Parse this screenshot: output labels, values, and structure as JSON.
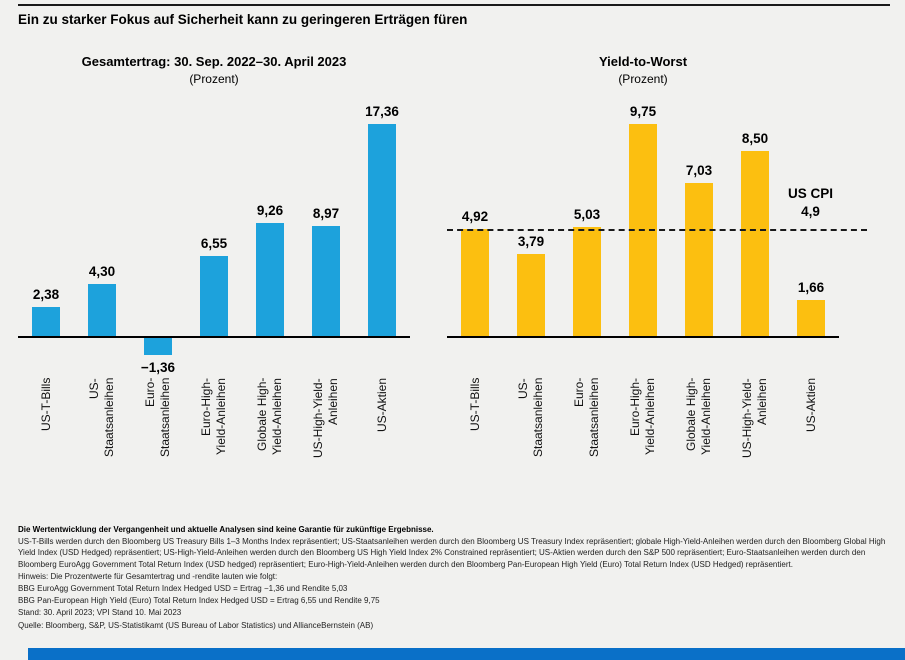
{
  "page": {
    "title": "Ein zu starker Fokus auf Sicherheit kann zu geringeren Erträgen füren"
  },
  "colors": {
    "background": "#f1f1ef",
    "blue_bar": "#1da2dc",
    "yellow_bar": "#fcbf10",
    "footer_accent_bar": "#0a70c8",
    "axis": "#000000"
  },
  "chart_data": [
    {
      "type": "bar",
      "title": "Gesamtertrag: 30. Sep. 2022–30. April 2023",
      "subtitle": "(Prozent)",
      "categories": [
        "US-T-Bills",
        "US-\nStaatsanleihen",
        "Euro-\nStaatsanleihen",
        "Euro-High-\nYield-Anleihen",
        "Globale High-\nYield-Anleihen",
        "US-High-Yield-\nAnleihen",
        "US-Aktien"
      ],
      "values": [
        2.38,
        4.3,
        -1.36,
        6.55,
        9.26,
        8.97,
        17.36
      ],
      "value_labels": [
        "2,38",
        "4,30",
        "−1,36",
        "6,55",
        "9,26",
        "8,97",
        "17,36"
      ],
      "bar_color": "#1da2dc",
      "xlabel": "",
      "ylabel": "",
      "ylim": [
        -2,
        18
      ],
      "grid": false,
      "legend": false,
      "y_axis_ticks_visible": false
    },
    {
      "type": "bar",
      "title": "Yield-to-Worst",
      "subtitle": "(Prozent)",
      "categories": [
        "US-T-Bills",
        "US-\nStaatsanleihen",
        "Euro-\nStaatsanleihen",
        "Euro-High-\nYield-Anleihen",
        "Globale High-\nYield-Anleihen",
        "US-High-Yield-\nAnleihen",
        "US-Aktien"
      ],
      "values": [
        4.92,
        3.79,
        5.03,
        9.75,
        7.03,
        8.5,
        1.66
      ],
      "value_labels": [
        "4,92",
        "3,79",
        "5,03",
        "9,75",
        "7,03",
        "8,50",
        "1,66"
      ],
      "bar_color": "#fcbf10",
      "reference_line": {
        "value": 4.9,
        "label": "US CPI\n4,9",
        "style": "dashed"
      },
      "xlabel": "",
      "ylabel": "",
      "ylim": [
        0,
        10.5
      ],
      "grid": false,
      "legend": false,
      "y_axis_ticks_visible": false
    }
  ],
  "footnotes": {
    "disclaimer": "Die Wertentwicklung der Vergangenheit und aktuelle Analysen sind keine Garantie für zukünftige Ergebnisse.",
    "description": "US-T-Bills werden durch den Bloomberg US Treasury Bills 1–3 Months Index repräsentiert; US-Staatsanleihen werden durch den Bloomberg US Treasury Index repräsentiert; globale High-Yield-Anleihen werden durch den Bloomberg Global High Yield Index (USD Hedged) repräsentiert; US-High-Yield-Anleihen werden durch den Bloomberg US High Yield Index 2% Constrained repräsentiert; US-Aktien werden durch den S&P 500 repräsentiert; Euro-Staatsanleihen werden durch den Bloomberg EuroAgg Government Total Return Index (USD hedged) repräsentiert; Euro-High-Yield-Anleihen werden durch den Bloomberg Pan-European High Yield (Euro) Total Return Index (USD Hedged) repräsentiert.",
    "note": "Hinweis: Die Prozentwerte für Gesamtertrag und -rendite lauten wie folgt:",
    "bbg1": "BBG EuroAgg Government Total Return Index Hedged USD = Ertrag −1,36 und Rendite 5,03",
    "bbg2": "BBG Pan-European High Yield (Euro) Total Return Index Hedged USD = Ertrag 6,55 und Rendite 9,75",
    "stand": "Stand: 30. April 2023; VPI Stand 10. Mai 2023",
    "quelle": "Quelle: Bloomberg, S&P, US-Statistikamt (US Bureau of Labor Statistics) und AllianceBernstein (AB)"
  }
}
